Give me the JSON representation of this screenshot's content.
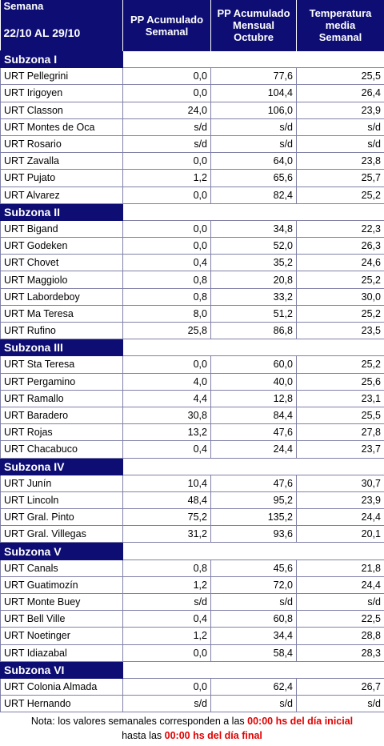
{
  "header": {
    "week_label": "Semana",
    "week_range": "22/10 AL 29/10",
    "columns": [
      [
        "PP Acumulado",
        "Semanal"
      ],
      [
        "PP Acumulado",
        "Mensual",
        "Octubre"
      ],
      [
        "Temperatura",
        "media",
        "Semanal"
      ]
    ]
  },
  "subzones": [
    {
      "name": "Subzona I",
      "rows": [
        [
          "URT Pellegrini",
          "0,0",
          "77,6",
          "25,5"
        ],
        [
          "URT Irigoyen",
          "0,0",
          "104,4",
          "26,4"
        ],
        [
          "URT Classon",
          "24,0",
          "106,0",
          "23,9"
        ],
        [
          "URT Montes de Oca",
          "s/d",
          "s/d",
          "s/d"
        ],
        [
          "URT Rosario",
          "s/d",
          "s/d",
          "s/d"
        ],
        [
          "URT Zavalla",
          "0,0",
          "64,0",
          "23,8"
        ],
        [
          "URT Pujato",
          "1,2",
          "65,6",
          "25,7"
        ],
        [
          "URT Alvarez",
          "0,0",
          "82,4",
          "25,2"
        ]
      ]
    },
    {
      "name": "Subzona II",
      "rows": [
        [
          "URT Bigand",
          "0,0",
          "34,8",
          "22,3"
        ],
        [
          "URT Godeken",
          "0,0",
          "52,0",
          "26,3"
        ],
        [
          "URT Chovet",
          "0,4",
          "35,2",
          "24,6"
        ],
        [
          "URT Maggiolo",
          "0,8",
          "20,8",
          "25,2"
        ],
        [
          "URT Labordeboy",
          "0,8",
          "33,2",
          "30,0"
        ],
        [
          "URT Ma Teresa",
          "8,0",
          "51,2",
          "25,2"
        ],
        [
          "URT Rufino",
          "25,8",
          "86,8",
          "23,5"
        ]
      ]
    },
    {
      "name": "Subzona III",
      "rows": [
        [
          "URT Sta Teresa",
          "0,0",
          "60,0",
          "25,2"
        ],
        [
          "URT Pergamino",
          "4,0",
          "40,0",
          "25,6"
        ],
        [
          "URT Ramallo",
          "4,4",
          "12,8",
          "23,1"
        ],
        [
          "URT Baradero",
          "30,8",
          "84,4",
          "25,5"
        ],
        [
          "URT Rojas",
          "13,2",
          "47,6",
          "27,8"
        ],
        [
          "URT Chacabuco",
          "0,4",
          "24,4",
          "23,7"
        ]
      ]
    },
    {
      "name": "Subzona IV",
      "rows": [
        [
          "URT Junín",
          "10,4",
          "47,6",
          "30,7"
        ],
        [
          "URT Lincoln",
          "48,4",
          "95,2",
          "23,9"
        ],
        [
          "URT Gral. Pinto",
          "75,2",
          "135,2",
          "24,4"
        ],
        [
          "URT Gral. Villegas",
          "31,2",
          "93,6",
          "20,1"
        ]
      ]
    },
    {
      "name": "Subzona V",
      "rows": [
        [
          "URT Canals",
          "0,8",
          "45,6",
          "21,8"
        ],
        [
          "URT Guatimozín",
          "1,2",
          "72,0",
          "24,4"
        ],
        [
          "URT Monte Buey",
          "s/d",
          "s/d",
          "s/d"
        ],
        [
          "URT Bell Ville",
          "0,4",
          "60,8",
          "22,5"
        ],
        [
          "URT Noetinger",
          "1,2",
          "34,4",
          "28,8"
        ],
        [
          "URT Idiazabal",
          "0,0",
          "58,4",
          "28,3"
        ]
      ]
    },
    {
      "name": "Subzona VI",
      "rows": [
        [
          "URT Colonia Almada",
          "0,0",
          "62,4",
          "26,7"
        ],
        [
          "URT Hernando",
          "s/d",
          "s/d",
          "s/d"
        ]
      ]
    }
  ],
  "note": {
    "text1": "Nota: los valores semanales corresponden a las ",
    "highlight1": "00:00 hs del día inicial",
    "text2": "hasta las ",
    "highlight2": "00:00 hs del día final"
  }
}
